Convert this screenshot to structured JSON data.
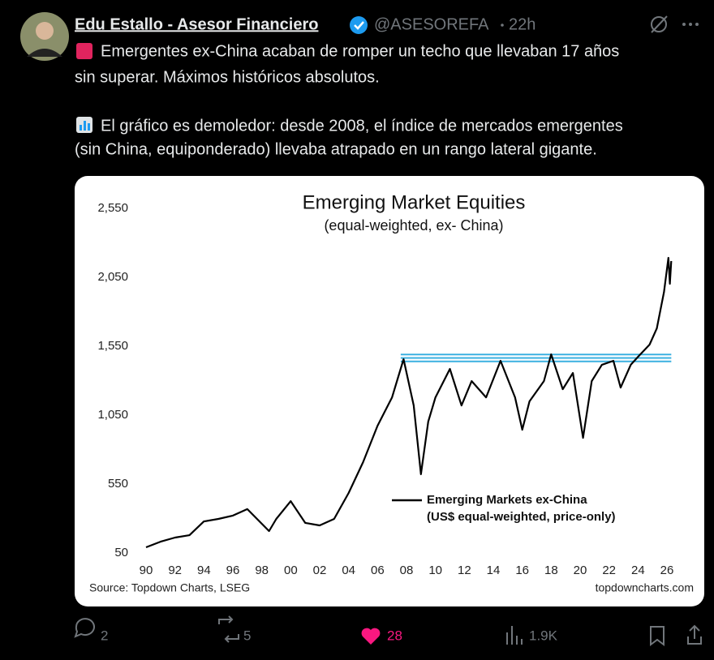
{
  "post": {
    "author": {
      "name": "Edu Estallo - Asesor Financiero",
      "handle": "@ASESOREFA",
      "time": "22h"
    },
    "text": [
      "Emergentes ex-China acaban de romper un techo que llevaban 17 años",
      "sin superar. Máximos históricos absolutos.",
      "El gráfico es demoledor: desde 2008, el índice de mercados emergentes",
      "(sin China, equiponderado) llevaba atrapado en un rango lateral gigante."
    ],
    "chart": {
      "type": "line",
      "title": "Emerging Market Equities",
      "subtitle": "(equal-weighted, ex- China)",
      "source": "Source: Topdown Charts, LSEG",
      "credit": "topdowncharts.com",
      "legend_note": "(US$ equal-weighted, price-only)",
      "x": [
        1990,
        1991,
        1992,
        1993,
        1994,
        1995,
        1996,
        1997,
        1998.5,
        1999,
        2000,
        2001,
        2002,
        2003,
        2004,
        2005,
        2006,
        2007,
        2007.8,
        2008.5,
        2009,
        2009.5,
        2010,
        2011,
        2011.8,
        2012.5,
        2013.5,
        2014.5,
        2015.5,
        2016,
        2016.5,
        2017.5,
        2018,
        2018.8,
        2019.5,
        2020.2,
        2020.8,
        2021.5,
        2022.3,
        2022.8,
        2023.5,
        2024,
        2024.8,
        2025.3,
        2025.8,
        2026.1,
        2026.2,
        2026.3
      ],
      "series": [
        {
          "name": "Emerging Markets ex-China",
          "color": "#000000",
          "values": [
            91,
            132,
            162,
            179,
            279,
            297,
            321,
            368,
            209,
            297,
            426,
            268,
            250,
            297,
            485,
            709,
            973,
            1179,
            1456,
            1120,
            621,
            1003,
            1179,
            1385,
            1120,
            1297,
            1179,
            1444,
            1179,
            944,
            1150,
            1297,
            1491,
            1238,
            1356,
            885,
            1297,
            1415,
            1444,
            1250,
            1415,
            1473,
            1562,
            1679,
            1944,
            2191,
            2003,
            2168
          ]
        }
      ],
      "band_values": [
        1440,
        1465,
        1490
      ],
      "band_color": "#3ab0e0",
      "xlim": [
        1990,
        2026
      ],
      "ylim": [
        50,
        2550
      ],
      "xticks": [
        {
          "value": 1990,
          "label": "90"
        },
        {
          "value": 1992,
          "label": "92"
        },
        {
          "value": 1994,
          "label": "94"
        },
        {
          "value": 1996,
          "label": "96"
        },
        {
          "value": 1998,
          "label": "98"
        },
        {
          "value": 2000,
          "label": "00"
        },
        {
          "value": 2002,
          "label": "02"
        },
        {
          "value": 2004,
          "label": "04"
        },
        {
          "value": 2006,
          "label": "06"
        },
        {
          "value": 2008,
          "label": "08"
        },
        {
          "value": 2010,
          "label": "10"
        },
        {
          "value": 2012,
          "label": "12"
        },
        {
          "value": 2014,
          "label": "14"
        },
        {
          "value": 2016,
          "label": "16"
        },
        {
          "value": 2018,
          "label": "18"
        },
        {
          "value": 2020,
          "label": "20"
        },
        {
          "value": 2022,
          "label": "22"
        },
        {
          "value": 2024,
          "label": "24"
        },
        {
          "value": 2026,
          "label": "26"
        }
      ],
      "yticks": [
        50,
        550,
        {
          "value": 1050,
          "label": "1,050"
        },
        {
          "value": 1550,
          "label": "1,550"
        },
        {
          "value": 2050,
          "label": "2,050"
        },
        {
          "value": 2550,
          "label": "2,550"
        }
      ]
    },
    "stats": {
      "replies": 2,
      "reposts": 5,
      "likes": 28,
      "views": "1.9K"
    }
  }
}
